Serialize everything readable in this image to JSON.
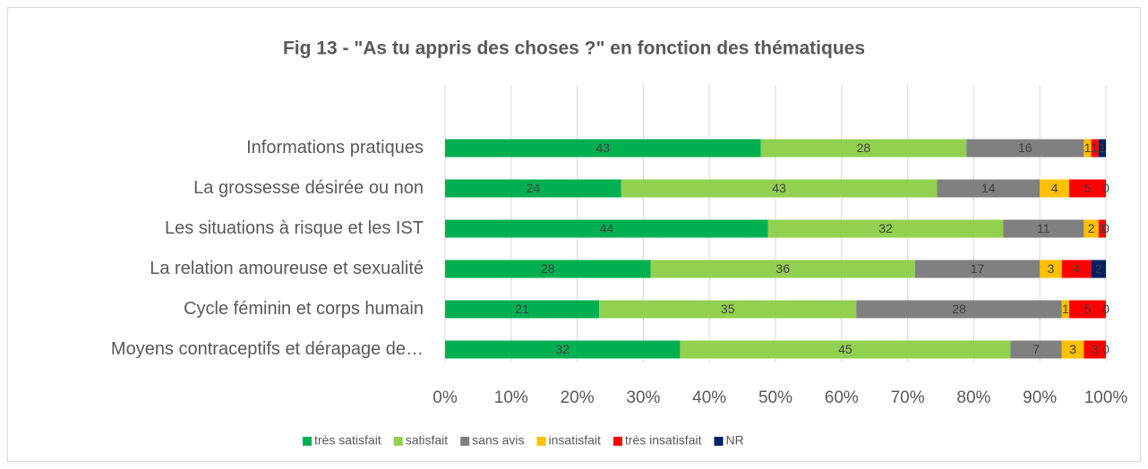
{
  "chart_data": {
    "type": "stacked_bar_100",
    "orientation": "horizontal",
    "title": "Fig 13 - \"As tu appris des choses ?\" en fonction des thématiques",
    "categories": [
      "Informations pratiques",
      "La grossesse désirée ou non",
      "Les situations à risque et les IST",
      "La relation amoureuse et sexualité",
      "Cycle féminin et corps humain",
      "Moyens contraceptifs et dérapage de…"
    ],
    "series": [
      {
        "name": "très satisfait",
        "color": "#00b050",
        "values": [
          43,
          24,
          44,
          28,
          21,
          32
        ]
      },
      {
        "name": "satisfait",
        "color": "#92d050",
        "values": [
          28,
          43,
          32,
          36,
          35,
          45
        ]
      },
      {
        "name": "sans avis",
        "color": "#808080",
        "values": [
          16,
          14,
          11,
          17,
          28,
          7
        ]
      },
      {
        "name": "insatisfait",
        "color": "#ffc000",
        "values": [
          1,
          4,
          2,
          3,
          1,
          3
        ]
      },
      {
        "name": "très insatisfait",
        "color": "#ff0000",
        "values": [
          1,
          5,
          1,
          4,
          5,
          3
        ]
      },
      {
        "name": "NR",
        "color": "#002060",
        "values": [
          1,
          0,
          0,
          2,
          0,
          0
        ]
      }
    ],
    "xlim": [
      0,
      100
    ],
    "xticks": [
      {
        "value": 0,
        "label": "0%"
      },
      {
        "value": 10,
        "label": "10%"
      },
      {
        "value": 20,
        "label": "20%"
      },
      {
        "value": 30,
        "label": "30%"
      },
      {
        "value": 40,
        "label": "40%"
      },
      {
        "value": 50,
        "label": "50%"
      },
      {
        "value": 60,
        "label": "60%"
      },
      {
        "value": 70,
        "label": "70%"
      },
      {
        "value": 80,
        "label": "80%"
      },
      {
        "value": 90,
        "label": "90%"
      },
      {
        "value": 100,
        "label": "100%"
      }
    ],
    "grid": true,
    "legend": "bottom"
  }
}
